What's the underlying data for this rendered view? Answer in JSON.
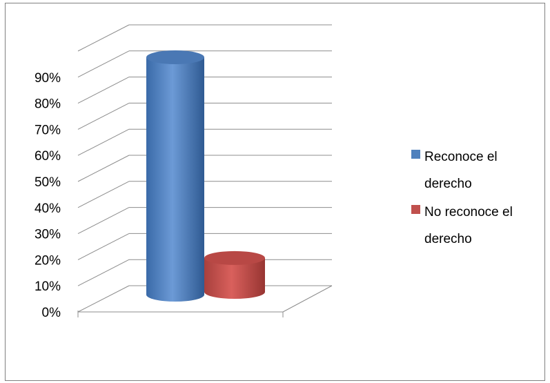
{
  "chart_data": {
    "type": "bar",
    "style": "3d-cylinder",
    "categories": [
      ""
    ],
    "series": [
      {
        "name": "Reconoce el derecho",
        "values": [
          0.91
        ],
        "color": "#4f81bd"
      },
      {
        "name": "No reconoce el derecho",
        "values": [
          0.13
        ],
        "color": "#c0504d"
      }
    ],
    "yticks": [
      "0%",
      "10%",
      "20%",
      "30%",
      "40%",
      "50%",
      "60%",
      "70%",
      "80%",
      "90%"
    ],
    "ylim": [
      0,
      1.0
    ],
    "grid": true,
    "legend": "right",
    "title": "",
    "xlabel": "",
    "ylabel": ""
  }
}
